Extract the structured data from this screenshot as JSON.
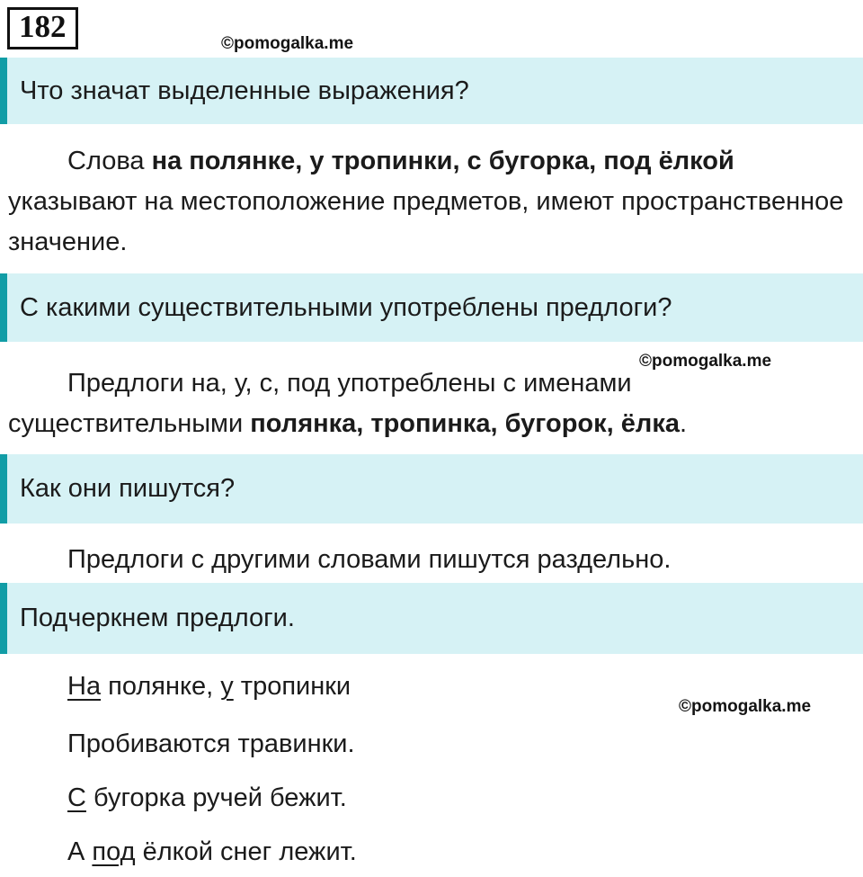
{
  "page": {
    "exercise_number": "182",
    "watermark": "©pomogalka.me",
    "colors": {
      "accent_teal": "#119da6",
      "question_bar_bg": "#d6f2f5",
      "text": "#1b1b1b",
      "page_bg": "#ffffff"
    }
  },
  "questions": {
    "q1": "Что значат выделенные выражения?",
    "q2": "С какими существительными употреблены предлоги?",
    "q3": "Как они пишутся?",
    "q4": "Подчеркнем предлоги."
  },
  "answers": {
    "a1": {
      "pre": "Слова ",
      "bold": "на полянке, у тропинки, с бугорка, под ёлкой",
      "post": " указывают на местоположение предметов, имеют пространственное значение."
    },
    "a2": {
      "pre": "Предлоги на, у, с, под употреблены с именами существительными ",
      "bold": "полянка, тропинка, бугорок, ёлка",
      "post": "."
    },
    "a3": "Предлоги с другими словами пишутся раздельно."
  },
  "poem": {
    "lines": [
      {
        "segments": [
          {
            "text": "На",
            "underline": true
          },
          {
            "text": " полянке, ",
            "underline": false
          },
          {
            "text": "у",
            "underline": true
          },
          {
            "text": " тропинки",
            "underline": false
          }
        ]
      },
      {
        "segments": [
          {
            "text": "Пробиваются травинки.",
            "underline": false
          }
        ]
      },
      {
        "segments": [
          {
            "text": "С",
            "underline": true
          },
          {
            "text": " бугорка ручей бежит.",
            "underline": false
          }
        ]
      },
      {
        "segments": [
          {
            "text": "А ",
            "underline": false
          },
          {
            "text": "под",
            "underline": true
          },
          {
            "text": " ёлкой снег лежит.",
            "underline": false
          }
        ]
      }
    ]
  }
}
